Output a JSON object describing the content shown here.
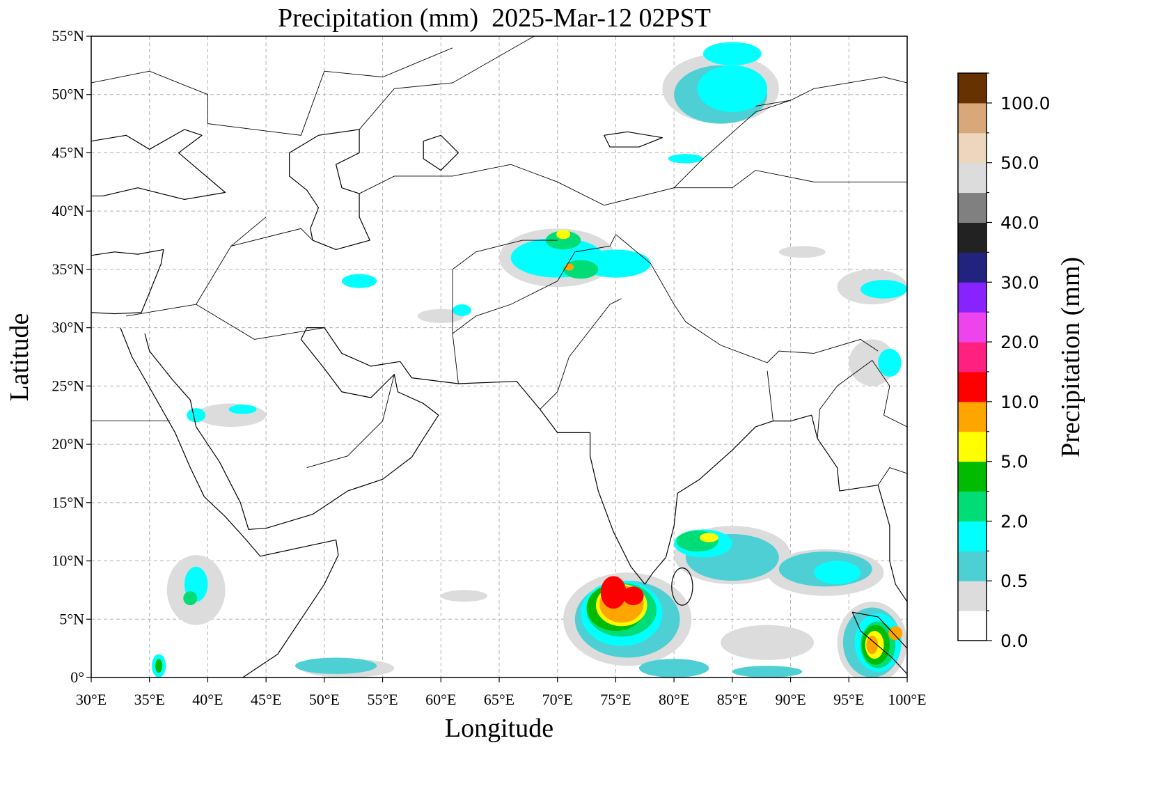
{
  "map": {
    "title": "Precipitation (mm)  2025-Mar-12 02PST",
    "xlabel": "Longitude",
    "ylabel": "Latitude",
    "xlim": [
      30,
      100
    ],
    "ylim": [
      0,
      55
    ],
    "xticks": [
      {
        "value": 30,
        "label": "30°E"
      },
      {
        "value": 35,
        "label": "35°E"
      },
      {
        "value": 40,
        "label": "40°E"
      },
      {
        "value": 45,
        "label": "45°E"
      },
      {
        "value": 50,
        "label": "50°E"
      },
      {
        "value": 55,
        "label": "55°E"
      },
      {
        "value": 60,
        "label": "60°E"
      },
      {
        "value": 65,
        "label": "65°E"
      },
      {
        "value": 70,
        "label": "70°E"
      },
      {
        "value": 75,
        "label": "75°E"
      },
      {
        "value": 80,
        "label": "80°E"
      },
      {
        "value": 85,
        "label": "85°E"
      },
      {
        "value": 90,
        "label": "90°E"
      },
      {
        "value": 95,
        "label": "95°E"
      },
      {
        "value": 100,
        "label": "100°E"
      }
    ],
    "yticks": [
      {
        "value": 0,
        "label": "0°"
      },
      {
        "value": 5,
        "label": "5°N"
      },
      {
        "value": 10,
        "label": "10°N"
      },
      {
        "value": 15,
        "label": "15°N"
      },
      {
        "value": 20,
        "label": "20°N"
      },
      {
        "value": 25,
        "label": "25°N"
      },
      {
        "value": 30,
        "label": "30°N"
      },
      {
        "value": 35,
        "label": "35°N"
      },
      {
        "value": 40,
        "label": "40°N"
      },
      {
        "value": 45,
        "label": "45°N"
      },
      {
        "value": 50,
        "label": "50°N"
      },
      {
        "value": 55,
        "label": "55°N"
      }
    ],
    "grid": true
  },
  "colorbar": {
    "label": "Precipitation (mm)",
    "colors": [
      "#ffffff",
      "#dcdcdc",
      "#4ecfd4",
      "#00ffff",
      "#00dd77",
      "#00bb00",
      "#ffff00",
      "#ffa500",
      "#ff0000",
      "#ff2080",
      "#ee44ee",
      "#8822ff",
      "#22227f",
      "#222222",
      "#808080",
      "#dcdcdc",
      "#eed5be",
      "#d8a87a",
      "#663300"
    ],
    "tick_labels": [
      "0.0",
      "0.5",
      "2.0",
      "5.0",
      "10.0",
      "20.0",
      "30.0",
      "40.0",
      "50.0",
      "100.0"
    ]
  }
}
